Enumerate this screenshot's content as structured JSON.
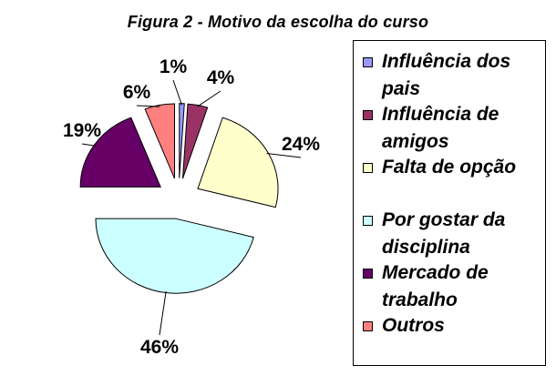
{
  "chart_data": {
    "type": "pie",
    "title": "Figura 2 - Motivo da escolha do curso",
    "legend_position": "right",
    "categories": [
      "Influência dos\npais",
      "Influência de\namigos",
      "Falta de opção",
      "Por gostar da\ndisciplina",
      "Mercado de\ntrabalho",
      "Outros"
    ],
    "values": [
      1,
      4,
      24,
      46,
      19,
      6
    ],
    "value_labels": [
      "1%",
      "4%",
      "24%",
      "46%",
      "19%",
      "6%"
    ],
    "colors": [
      "#9999ff",
      "#993366",
      "#ffffcc",
      "#ccffff",
      "#660066",
      "#ff8080"
    ]
  }
}
